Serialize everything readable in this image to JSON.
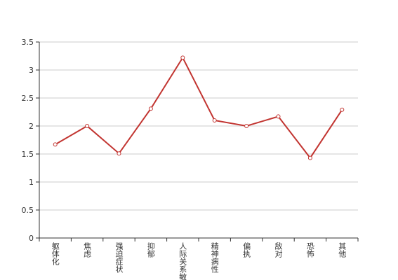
{
  "chart_data": {
    "type": "line",
    "categories": [
      "躯体化",
      "焦虑",
      "强迫症状",
      "抑郁",
      "人际关系敏感",
      "精神病性",
      "偏执",
      "敌对",
      "恐怖",
      "其他"
    ],
    "series": [
      {
        "color": "#c23531",
        "values": [
          1.67,
          2.0,
          1.51,
          2.31,
          3.22,
          2.1,
          2.0,
          2.17,
          1.43,
          2.29
        ]
      }
    ],
    "ylim": [
      0,
      3.5
    ],
    "yticks": [
      0,
      0.5,
      1,
      1.5,
      2,
      2.5,
      3,
      3.5
    ],
    "grid": true
  }
}
